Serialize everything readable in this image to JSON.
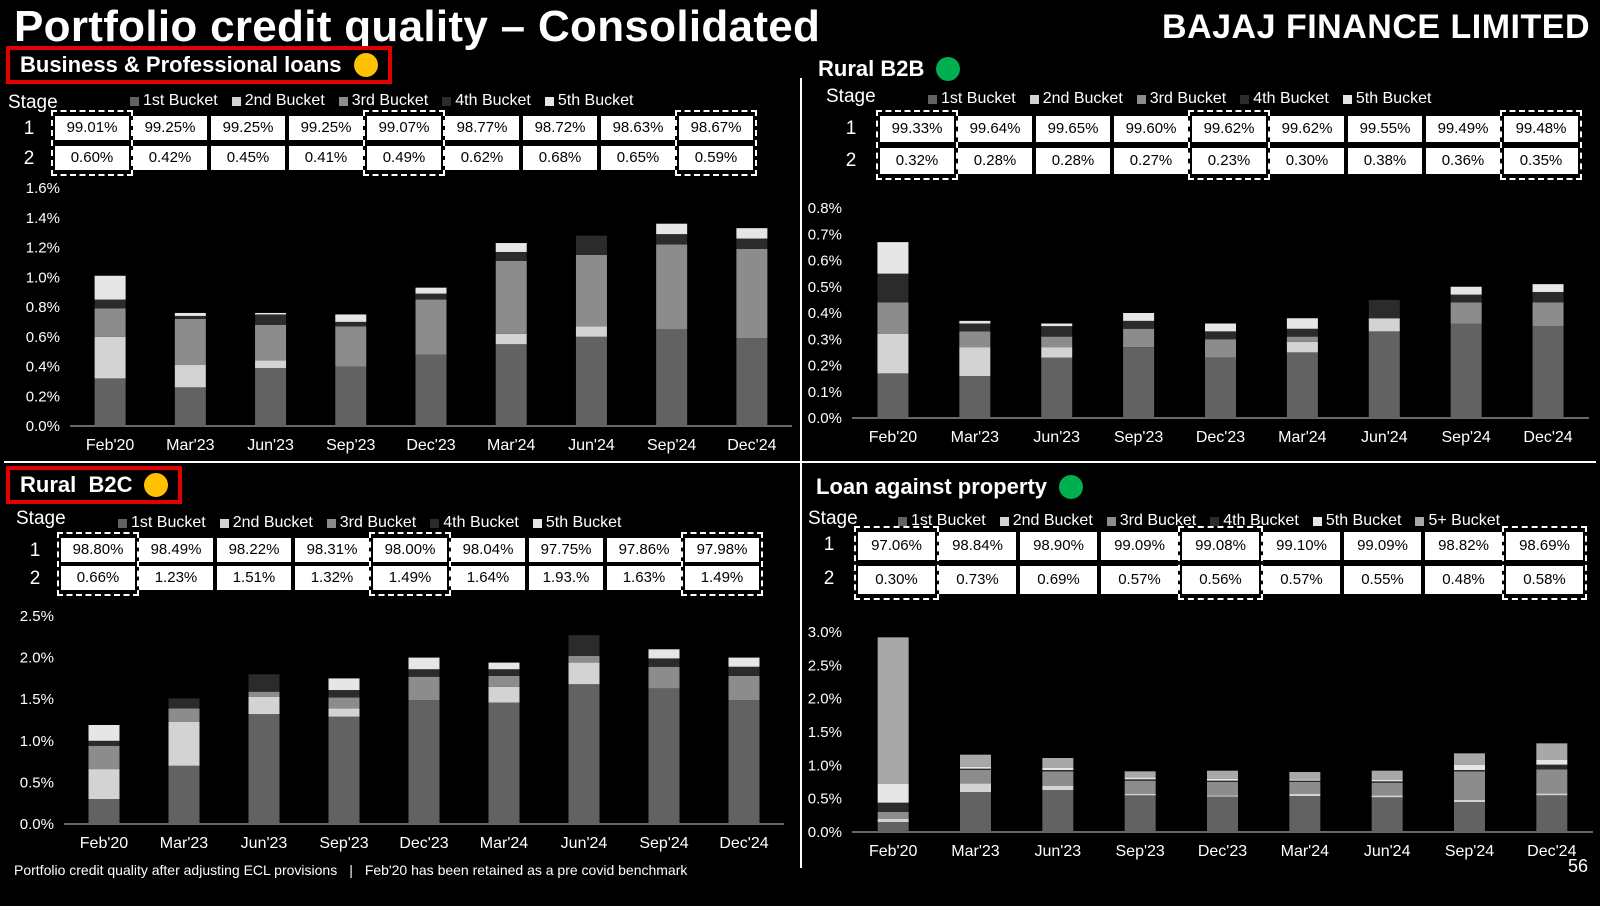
{
  "title": "Portfolio credit quality – Consolidated",
  "brand": "BAJAJ FINANCE LIMITED",
  "footer_left": "Portfolio credit quality after adjusting ECL provisions",
  "footer_sep": "|",
  "footer_right": "Feb'20 has been retained as a pre covid benchmark",
  "page_number": "56",
  "colors": {
    "background": "#000000",
    "highlight_box": "#e00000",
    "status_yellow": "#ffc000",
    "status_green": "#00b050",
    "bucket_1": "#626262",
    "bucket_2": "#d3d3d3",
    "bucket_3": "#8c8c8c",
    "bucket_4": "#2b2b2b",
    "bucket_5": "#e6e6e6",
    "bucket_5plus": "#a8a8a8"
  },
  "stage_label": "Stage",
  "chart_data": [
    {
      "id": "bpl",
      "type": "bar",
      "stacked": true,
      "panel_title": "Business & Professional loans",
      "status": "yellow",
      "categories": [
        "Feb'20",
        "Mar'23",
        "Jun'23",
        "Sep'23",
        "Dec'23",
        "Mar'24",
        "Jun'24",
        "Sep'24",
        "Dec'24"
      ],
      "series": [
        {
          "name": "1st Bucket",
          "values": [
            0.32,
            0.26,
            0.39,
            0.4,
            0.48,
            0.55,
            0.6,
            0.65,
            0.59
          ]
        },
        {
          "name": "2nd Bucket",
          "values": [
            0.28,
            0.15,
            0.05,
            0.0,
            0.0,
            0.07,
            0.07,
            0.0,
            0.0
          ]
        },
        {
          "name": "3rd Bucket",
          "values": [
            0.19,
            0.31,
            0.24,
            0.27,
            0.37,
            0.49,
            0.48,
            0.57,
            0.6
          ]
        },
        {
          "name": "4th Bucket",
          "values": [
            0.06,
            0.02,
            0.07,
            0.03,
            0.04,
            0.06,
            0.13,
            0.07,
            0.07
          ]
        },
        {
          "name": "5th Bucket",
          "values": [
            0.16,
            0.02,
            0.01,
            0.05,
            0.04,
            0.06,
            0.0,
            0.07,
            0.07
          ]
        }
      ],
      "stages": [
        {
          "stage": "1",
          "values": [
            "99.01%",
            "99.25%",
            "99.25%",
            "99.25%",
            "99.07%",
            "98.77%",
            "98.72%",
            "98.63%",
            "98.67%"
          ]
        },
        {
          "stage": "2",
          "values": [
            "0.60%",
            "0.42%",
            "0.45%",
            "0.41%",
            "0.49%",
            "0.62%",
            "0.68%",
            "0.65%",
            "0.59%"
          ]
        }
      ],
      "yticks": [
        "0.0%",
        "0.2%",
        "0.4%",
        "0.6%",
        "0.8%",
        "1.0%",
        "1.2%",
        "1.4%",
        "1.6%"
      ],
      "ylim": [
        0,
        1.6
      ],
      "highlighted_columns": [
        0,
        4,
        8
      ]
    },
    {
      "id": "b2b",
      "type": "bar",
      "stacked": true,
      "panel_title": "Rural B2B",
      "status": "green",
      "categories": [
        "Feb'20",
        "Mar'23",
        "Jun'23",
        "Sep'23",
        "Dec'23",
        "Mar'24",
        "Jun'24",
        "Sep'24",
        "Dec'24"
      ],
      "series": [
        {
          "name": "1st Bucket",
          "values": [
            0.17,
            0.16,
            0.23,
            0.27,
            0.23,
            0.25,
            0.33,
            0.36,
            0.35
          ]
        },
        {
          "name": "2nd Bucket",
          "values": [
            0.15,
            0.11,
            0.04,
            0.0,
            0.0,
            0.04,
            0.05,
            0.0,
            0.0
          ]
        },
        {
          "name": "3rd Bucket",
          "values": [
            0.12,
            0.06,
            0.04,
            0.07,
            0.07,
            0.02,
            0.0,
            0.08,
            0.09
          ]
        },
        {
          "name": "4th Bucket",
          "values": [
            0.11,
            0.03,
            0.04,
            0.03,
            0.03,
            0.03,
            0.07,
            0.03,
            0.04
          ]
        },
        {
          "name": "5th Bucket",
          "values": [
            0.12,
            0.01,
            0.01,
            0.03,
            0.03,
            0.04,
            0.0,
            0.03,
            0.03
          ]
        }
      ],
      "stages": [
        {
          "stage": "1",
          "values": [
            "99.33%",
            "99.64%",
            "99.65%",
            "99.60%",
            "99.62%",
            "99.62%",
            "99.55%",
            "99.49%",
            "99.48%"
          ]
        },
        {
          "stage": "2",
          "values": [
            "0.32%",
            "0.28%",
            "0.28%",
            "0.27%",
            "0.23%",
            "0.30%",
            "0.38%",
            "0.36%",
            "0.35%"
          ]
        }
      ],
      "yticks": [
        "0.0%",
        "0.1%",
        "0.2%",
        "0.3%",
        "0.4%",
        "0.5%",
        "0.6%",
        "0.7%",
        "0.8%"
      ],
      "ylim": [
        0,
        0.8
      ],
      "highlighted_columns": [
        0,
        4,
        8
      ]
    },
    {
      "id": "b2c",
      "type": "bar",
      "stacked": true,
      "panel_title": "Rural  B2C",
      "status": "yellow",
      "categories": [
        "Feb'20",
        "Mar'23",
        "Jun'23",
        "Sep'23",
        "Dec'23",
        "Mar'24",
        "Jun'24",
        "Sep'24",
        "Dec'24"
      ],
      "series": [
        {
          "name": "1st Bucket",
          "values": [
            0.3,
            0.7,
            1.32,
            1.29,
            1.49,
            1.46,
            1.68,
            1.63,
            1.49
          ]
        },
        {
          "name": "2nd Bucket",
          "values": [
            0.36,
            0.53,
            0.21,
            0.1,
            0.0,
            0.19,
            0.26,
            0.0,
            0.0
          ]
        },
        {
          "name": "3rd Bucket",
          "values": [
            0.28,
            0.16,
            0.06,
            0.13,
            0.28,
            0.13,
            0.08,
            0.26,
            0.29
          ]
        },
        {
          "name": "4th Bucket",
          "values": [
            0.06,
            0.12,
            0.21,
            0.09,
            0.09,
            0.08,
            0.25,
            0.1,
            0.11
          ]
        },
        {
          "name": "5th Bucket",
          "values": [
            0.19,
            0.0,
            0.0,
            0.14,
            0.14,
            0.08,
            0.0,
            0.11,
            0.11
          ]
        }
      ],
      "stages": [
        {
          "stage": "1",
          "values": [
            "98.80%",
            "98.49%",
            "98.22%",
            "98.31%",
            "98.00%",
            "98.04%",
            "97.75%",
            "97.86%",
            "97.98%"
          ]
        },
        {
          "stage": "2",
          "values": [
            "0.66%",
            "1.23%",
            "1.51%",
            "1.32%",
            "1.49%",
            "1.64%",
            "1.93.%",
            "1.63%",
            "1.49%"
          ]
        }
      ],
      "yticks": [
        "0.0%",
        "0.5%",
        "1.0%",
        "1.5%",
        "2.0%",
        "2.5%"
      ],
      "ylim": [
        0,
        2.5
      ],
      "highlighted_columns": [
        0,
        4,
        8
      ]
    },
    {
      "id": "lap",
      "type": "bar",
      "stacked": true,
      "panel_title": "Loan against property",
      "status": "green",
      "categories": [
        "Feb'20",
        "Mar'23",
        "Jun'23",
        "Sep'23",
        "Dec'23",
        "Mar'24",
        "Jun'24",
        "Sep'24",
        "Dec'24"
      ],
      "series": [
        {
          "name": "1st Bucket",
          "values": [
            0.15,
            0.6,
            0.63,
            0.55,
            0.53,
            0.54,
            0.52,
            0.45,
            0.55
          ]
        },
        {
          "name": "2nd Bucket",
          "values": [
            0.05,
            0.13,
            0.06,
            0.02,
            0.02,
            0.03,
            0.03,
            0.03,
            0.03
          ]
        },
        {
          "name": "3rd Bucket",
          "values": [
            0.1,
            0.2,
            0.22,
            0.2,
            0.2,
            0.18,
            0.19,
            0.43,
            0.36
          ]
        },
        {
          "name": "4th Bucket",
          "values": [
            0.14,
            0.02,
            0.02,
            0.02,
            0.02,
            0.02,
            0.02,
            0.02,
            0.07
          ]
        },
        {
          "name": "5th Bucket",
          "values": [
            0.28,
            0.03,
            0.03,
            0.03,
            0.03,
            0.02,
            0.02,
            0.08,
            0.07
          ]
        },
        {
          "name": "5+ Bucket",
          "values": [
            2.2,
            0.18,
            0.15,
            0.09,
            0.12,
            0.11,
            0.14,
            0.17,
            0.25
          ]
        }
      ],
      "stages": [
        {
          "stage": "1",
          "values": [
            "97.06%",
            "98.84%",
            "98.90%",
            "99.09%",
            "99.08%",
            "99.10%",
            "99.09%",
            "98.82%",
            "98.69%"
          ]
        },
        {
          "stage": "2",
          "values": [
            "0.30%",
            "0.73%",
            "0.69%",
            "0.57%",
            "0.56%",
            "0.57%",
            "0.55%",
            "0.48%",
            "0.58%"
          ]
        }
      ],
      "yticks": [
        "0.0%",
        "0.5%",
        "1.0%",
        "1.5%",
        "2.0%",
        "2.5%",
        "3.0%"
      ],
      "ylim": [
        0,
        3.0
      ],
      "highlighted_columns": [
        0,
        4,
        8
      ]
    }
  ]
}
